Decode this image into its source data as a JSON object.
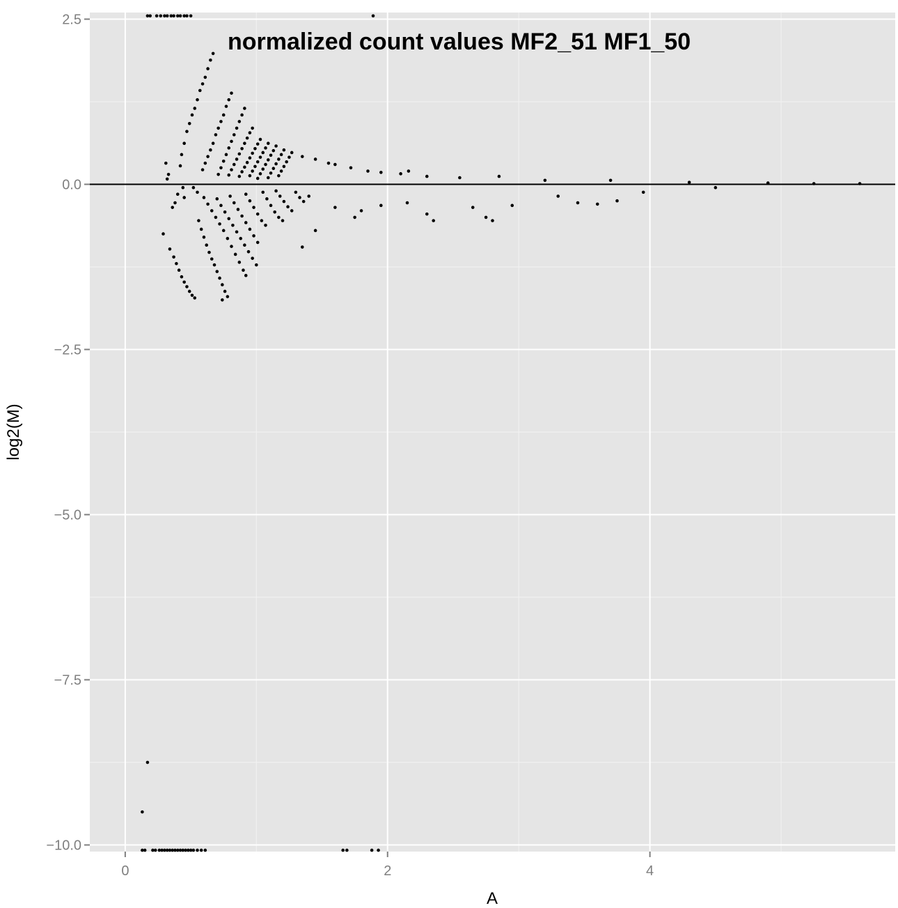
{
  "chart_data": {
    "type": "scatter",
    "title": "normalized count values MF2_51 MF1_50",
    "xlabel": "A",
    "ylabel": "log2(M)",
    "xlim": [
      -0.27,
      5.87
    ],
    "ylim": [
      -10.1,
      2.6
    ],
    "xticks": [
      0,
      2,
      4
    ],
    "xtick_labels": [
      "0",
      "2",
      "4"
    ],
    "yticks": [
      2.5,
      0.0,
      -2.5,
      -5.0,
      -7.5,
      -10.0
    ],
    "ytick_labels": [
      "2.5",
      "0.0",
      "−2.5",
      "−5.0",
      "−7.5",
      "−10.0"
    ],
    "reference_line": {
      "y": 0
    },
    "grid": true,
    "legend": "none",
    "colors": {
      "panel": "#e5e5e5",
      "grid_major": "#ffffff",
      "grid_minor": "#f2f2f2",
      "point": "#000000",
      "tick_label": "#7f7f7f"
    },
    "series": [
      {
        "points": [
          [
            0.17,
            2.55
          ],
          [
            0.19,
            2.55
          ],
          [
            0.24,
            2.55
          ],
          [
            0.27,
            2.55
          ],
          [
            0.3,
            2.55
          ],
          [
            0.32,
            2.55
          ],
          [
            0.35,
            2.55
          ],
          [
            0.37,
            2.55
          ],
          [
            0.4,
            2.55
          ],
          [
            0.42,
            2.55
          ],
          [
            0.45,
            2.55
          ],
          [
            0.47,
            2.55
          ],
          [
            0.5,
            2.55
          ],
          [
            1.89,
            2.55
          ],
          [
            0.67,
            1.98
          ],
          [
            0.65,
            1.88
          ],
          [
            0.63,
            1.75
          ],
          [
            0.61,
            1.62
          ],
          [
            0.59,
            1.52
          ],
          [
            0.57,
            1.42
          ],
          [
            0.55,
            1.28
          ],
          [
            0.53,
            1.15
          ],
          [
            0.51,
            1.05
          ],
          [
            0.49,
            0.92
          ],
          [
            0.47,
            0.8
          ],
          [
            0.45,
            0.62
          ],
          [
            0.43,
            0.45
          ],
          [
            0.42,
            0.28
          ],
          [
            0.81,
            1.38
          ],
          [
            0.79,
            1.28
          ],
          [
            0.77,
            1.18
          ],
          [
            0.75,
            1.05
          ],
          [
            0.73,
            0.95
          ],
          [
            0.71,
            0.85
          ],
          [
            0.69,
            0.75
          ],
          [
            0.67,
            0.62
          ],
          [
            0.65,
            0.52
          ],
          [
            0.63,
            0.42
          ],
          [
            0.61,
            0.32
          ],
          [
            0.59,
            0.22
          ],
          [
            0.91,
            1.15
          ],
          [
            0.89,
            1.05
          ],
          [
            0.87,
            0.95
          ],
          [
            0.85,
            0.85
          ],
          [
            0.83,
            0.75
          ],
          [
            0.81,
            0.65
          ],
          [
            0.79,
            0.55
          ],
          [
            0.77,
            0.45
          ],
          [
            0.75,
            0.35
          ],
          [
            0.73,
            0.25
          ],
          [
            0.71,
            0.15
          ],
          [
            0.97,
            0.85
          ],
          [
            0.95,
            0.78
          ],
          [
            0.93,
            0.7
          ],
          [
            0.91,
            0.62
          ],
          [
            0.89,
            0.54
          ],
          [
            0.87,
            0.46
          ],
          [
            0.85,
            0.38
          ],
          [
            0.83,
            0.3
          ],
          [
            0.81,
            0.22
          ],
          [
            0.79,
            0.14
          ],
          [
            1.03,
            0.68
          ],
          [
            1.01,
            0.61
          ],
          [
            0.99,
            0.54
          ],
          [
            0.97,
            0.47
          ],
          [
            0.95,
            0.4
          ],
          [
            0.93,
            0.33
          ],
          [
            0.91,
            0.26
          ],
          [
            0.89,
            0.19
          ],
          [
            0.87,
            0.12
          ],
          [
            1.09,
            0.62
          ],
          [
            1.07,
            0.55
          ],
          [
            1.05,
            0.48
          ],
          [
            1.03,
            0.41
          ],
          [
            1.01,
            0.34
          ],
          [
            0.99,
            0.27
          ],
          [
            0.97,
            0.2
          ],
          [
            0.95,
            0.13
          ],
          [
            1.15,
            0.58
          ],
          [
            1.13,
            0.51
          ],
          [
            1.11,
            0.44
          ],
          [
            1.09,
            0.37
          ],
          [
            1.07,
            0.3
          ],
          [
            1.05,
            0.23
          ],
          [
            1.03,
            0.16
          ],
          [
            1.01,
            0.09
          ],
          [
            1.21,
            0.52
          ],
          [
            1.19,
            0.45
          ],
          [
            1.17,
            0.38
          ],
          [
            1.15,
            0.31
          ],
          [
            1.13,
            0.24
          ],
          [
            1.11,
            0.17
          ],
          [
            1.09,
            0.1
          ],
          [
            1.27,
            0.48
          ],
          [
            1.25,
            0.41
          ],
          [
            1.23,
            0.34
          ],
          [
            1.21,
            0.27
          ],
          [
            1.19,
            0.2
          ],
          [
            1.17,
            0.13
          ],
          [
            1.35,
            0.42
          ],
          [
            1.45,
            0.38
          ],
          [
            1.55,
            0.32
          ],
          [
            1.6,
            0.3
          ],
          [
            1.72,
            0.25
          ],
          [
            1.85,
            0.2
          ],
          [
            1.95,
            0.18
          ],
          [
            2.1,
            0.16
          ],
          [
            2.16,
            0.2
          ],
          [
            2.3,
            0.12
          ],
          [
            2.55,
            0.1
          ],
          [
            2.85,
            0.12
          ],
          [
            3.2,
            0.06
          ],
          [
            3.7,
            0.06
          ],
          [
            4.3,
            0.03
          ],
          [
            4.9,
            0.02
          ],
          [
            5.25,
            0.01
          ],
          [
            5.6,
            0.01
          ],
          [
            0.31,
            0.32
          ],
          [
            0.33,
            0.15
          ],
          [
            0.32,
            0.08
          ],
          [
            0.36,
            -0.35
          ],
          [
            0.38,
            -0.28
          ],
          [
            0.4,
            -0.15
          ],
          [
            0.44,
            -0.05
          ],
          [
            0.45,
            -0.2
          ],
          [
            0.52,
            -0.05
          ],
          [
            0.55,
            -0.12
          ],
          [
            0.29,
            -0.75
          ],
          [
            0.34,
            -0.98
          ],
          [
            0.37,
            -1.1
          ],
          [
            0.39,
            -1.2
          ],
          [
            0.41,
            -1.3
          ],
          [
            0.43,
            -1.4
          ],
          [
            0.45,
            -1.48
          ],
          [
            0.47,
            -1.55
          ],
          [
            0.49,
            -1.62
          ],
          [
            0.51,
            -1.68
          ],
          [
            0.53,
            -1.72
          ],
          [
            0.56,
            -0.55
          ],
          [
            0.58,
            -0.68
          ],
          [
            0.6,
            -0.8
          ],
          [
            0.62,
            -0.92
          ],
          [
            0.64,
            -1.03
          ],
          [
            0.66,
            -1.13
          ],
          [
            0.68,
            -1.22
          ],
          [
            0.7,
            -1.32
          ],
          [
            0.72,
            -1.42
          ],
          [
            0.74,
            -1.52
          ],
          [
            0.76,
            -1.62
          ],
          [
            0.78,
            -1.7
          ],
          [
            0.74,
            -1.75
          ],
          [
            0.6,
            -0.2
          ],
          [
            0.63,
            -0.3
          ],
          [
            0.66,
            -0.4
          ],
          [
            0.69,
            -0.5
          ],
          [
            0.72,
            -0.6
          ],
          [
            0.75,
            -0.7
          ],
          [
            0.78,
            -0.82
          ],
          [
            0.81,
            -0.94
          ],
          [
            0.84,
            -1.06
          ],
          [
            0.87,
            -1.18
          ],
          [
            0.9,
            -1.3
          ],
          [
            0.92,
            -1.38
          ],
          [
            0.7,
            -0.22
          ],
          [
            0.73,
            -0.32
          ],
          [
            0.76,
            -0.42
          ],
          [
            0.79,
            -0.52
          ],
          [
            0.82,
            -0.62
          ],
          [
            0.85,
            -0.72
          ],
          [
            0.88,
            -0.82
          ],
          [
            0.91,
            -0.92
          ],
          [
            0.94,
            -1.02
          ],
          [
            0.97,
            -1.12
          ],
          [
            1.0,
            -1.22
          ],
          [
            0.8,
            -0.18
          ],
          [
            0.83,
            -0.28
          ],
          [
            0.86,
            -0.38
          ],
          [
            0.89,
            -0.48
          ],
          [
            0.92,
            -0.58
          ],
          [
            0.95,
            -0.68
          ],
          [
            0.98,
            -0.78
          ],
          [
            1.01,
            -0.88
          ],
          [
            0.92,
            -0.15
          ],
          [
            0.95,
            -0.25
          ],
          [
            0.98,
            -0.35
          ],
          [
            1.01,
            -0.45
          ],
          [
            1.04,
            -0.55
          ],
          [
            1.07,
            -0.62
          ],
          [
            1.05,
            -0.12
          ],
          [
            1.08,
            -0.22
          ],
          [
            1.11,
            -0.32
          ],
          [
            1.14,
            -0.42
          ],
          [
            1.17,
            -0.5
          ],
          [
            1.2,
            -0.55
          ],
          [
            1.15,
            -0.1
          ],
          [
            1.18,
            -0.18
          ],
          [
            1.21,
            -0.26
          ],
          [
            1.24,
            -0.34
          ],
          [
            1.27,
            -0.4
          ],
          [
            1.3,
            -0.12
          ],
          [
            1.33,
            -0.2
          ],
          [
            1.36,
            -0.26
          ],
          [
            1.4,
            -0.18
          ],
          [
            1.45,
            -0.7
          ],
          [
            1.35,
            -0.95
          ],
          [
            1.6,
            -0.35
          ],
          [
            1.75,
            -0.5
          ],
          [
            1.8,
            -0.4
          ],
          [
            1.95,
            -0.32
          ],
          [
            2.15,
            -0.28
          ],
          [
            2.3,
            -0.45
          ],
          [
            2.35,
            -0.55
          ],
          [
            2.65,
            -0.35
          ],
          [
            2.75,
            -0.5
          ],
          [
            2.8,
            -0.55
          ],
          [
            2.95,
            -0.32
          ],
          [
            3.3,
            -0.18
          ],
          [
            3.45,
            -0.28
          ],
          [
            3.6,
            -0.3
          ],
          [
            3.75,
            -0.25
          ],
          [
            3.95,
            -0.12
          ],
          [
            4.5,
            -0.05
          ],
          [
            0.17,
            -8.75
          ],
          [
            0.13,
            -9.5
          ],
          [
            0.13,
            -10.08
          ],
          [
            0.15,
            -10.08
          ],
          [
            0.21,
            -10.08
          ],
          [
            0.23,
            -10.08
          ],
          [
            0.26,
            -10.08
          ],
          [
            0.28,
            -10.08
          ],
          [
            0.3,
            -10.08
          ],
          [
            0.32,
            -10.08
          ],
          [
            0.34,
            -10.08
          ],
          [
            0.36,
            -10.08
          ],
          [
            0.38,
            -10.08
          ],
          [
            0.4,
            -10.08
          ],
          [
            0.42,
            -10.08
          ],
          [
            0.44,
            -10.08
          ],
          [
            0.46,
            -10.08
          ],
          [
            0.48,
            -10.08
          ],
          [
            0.5,
            -10.08
          ],
          [
            0.52,
            -10.08
          ],
          [
            0.55,
            -10.08
          ],
          [
            0.58,
            -10.08
          ],
          [
            0.61,
            -10.08
          ],
          [
            1.66,
            -10.08
          ],
          [
            1.69,
            -10.08
          ],
          [
            1.88,
            -10.08
          ],
          [
            1.93,
            -10.08
          ]
        ]
      }
    ]
  }
}
